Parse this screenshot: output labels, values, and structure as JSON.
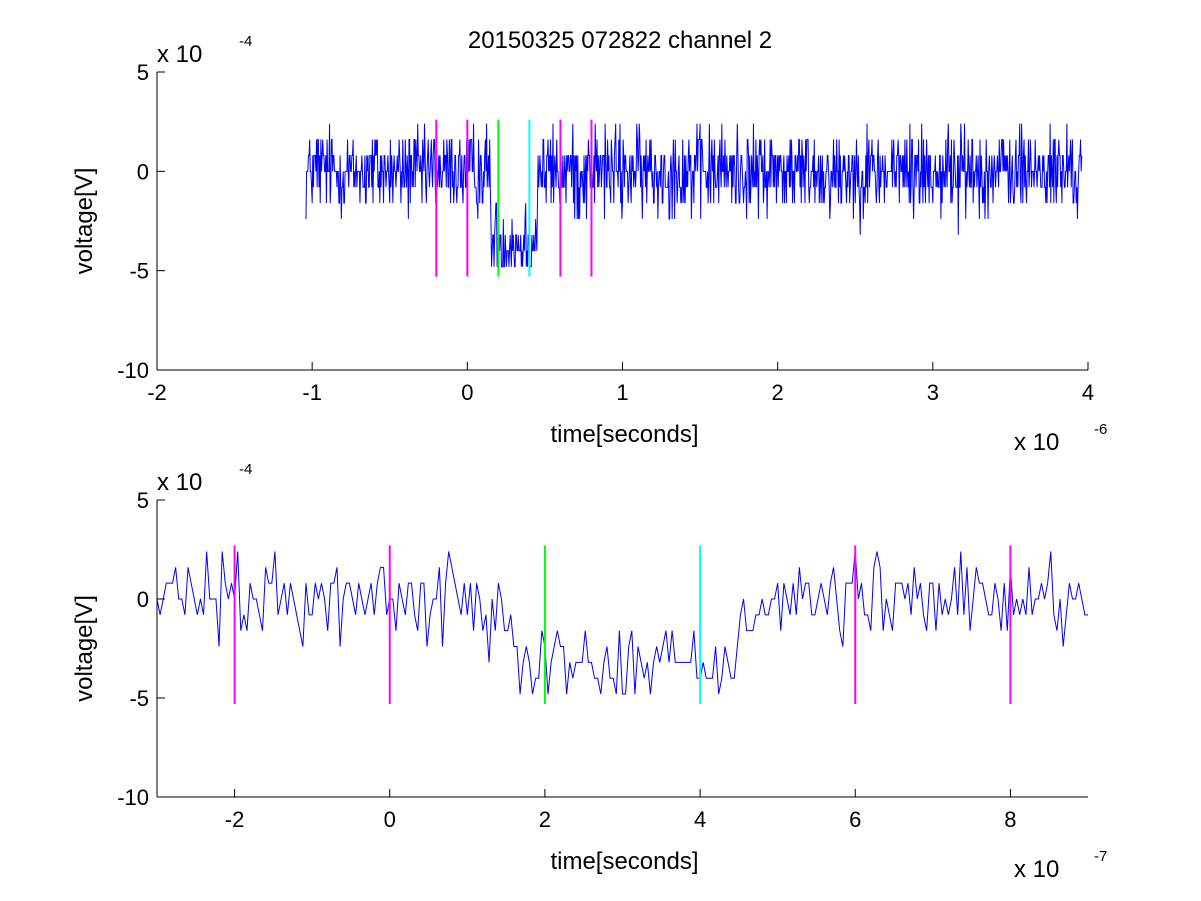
{
  "figure_title": "20150325 072822 channel 2",
  "chart_data": [
    {
      "type": "line",
      "title": "20150325 072822 channel 2",
      "xlabel": "time[seconds]",
      "ylabel": "voltage[V]",
      "x_exponent_label": "x 10",
      "x_exponent_power": "-6",
      "y_exponent_label": "x 10",
      "y_exponent_power": "-4",
      "xlim": [
        -2,
        4
      ],
      "ylim": [
        -10,
        5
      ],
      "xticks": [
        -2,
        -1,
        0,
        1,
        2,
        3,
        4
      ],
      "xtick_labels": [
        "-2",
        "-1",
        "0",
        "1",
        "2",
        "3",
        "4"
      ],
      "yticks": [
        -10,
        -5,
        0,
        5
      ],
      "ytick_labels": [
        "-10",
        "-5",
        "0",
        "5"
      ],
      "grid": false,
      "signal": {
        "color": "#0000ff",
        "x_start": -1.04,
        "x_end": 3.96,
        "baseline": 0,
        "noise_amplitude": 2.0,
        "dip_start": 0.15,
        "dip_end": 0.45,
        "dip_level": -3.5,
        "y_min_shown": -4.8,
        "y_max_shown": 2.4
      },
      "vlines": [
        {
          "x": -0.2,
          "y0": -5.3,
          "y1": 2.6,
          "color": "#ff00ff"
        },
        {
          "x": 0.0,
          "y0": -5.3,
          "y1": 2.6,
          "color": "#ff00ff"
        },
        {
          "x": 0.2,
          "y0": -5.3,
          "y1": 2.6,
          "color": "#00ff00"
        },
        {
          "x": 0.4,
          "y0": -5.3,
          "y1": 2.6,
          "color": "#00ffff"
        },
        {
          "x": 0.6,
          "y0": -5.3,
          "y1": 2.6,
          "color": "#ff00ff"
        },
        {
          "x": 0.8,
          "y0": -5.3,
          "y1": 2.6,
          "color": "#ff00ff"
        }
      ]
    },
    {
      "type": "line",
      "title": "",
      "xlabel": "time[seconds]",
      "ylabel": "voltage[V]",
      "x_exponent_label": "x 10",
      "x_exponent_power": "-7",
      "y_exponent_label": "x 10",
      "y_exponent_power": "-4",
      "xlim": [
        -3,
        9
      ],
      "ylim": [
        -10,
        5
      ],
      "xticks": [
        -2,
        0,
        2,
        4,
        6,
        8
      ],
      "xtick_labels": [
        "-2",
        "0",
        "2",
        "4",
        "6",
        "8"
      ],
      "yticks": [
        -10,
        -5,
        0,
        5
      ],
      "ytick_labels": [
        "-10",
        "-5",
        "0",
        "5"
      ],
      "grid": false,
      "signal": {
        "color": "#0000ff",
        "x_start": -3,
        "x_end": 9,
        "baseline": 0,
        "noise_amplitude": 2.0,
        "dip_start": 1.6,
        "dip_end": 4.5,
        "dip_level": -3.3,
        "y_min_shown": -4.8,
        "y_max_shown": 2.4
      },
      "vlines": [
        {
          "x": -2,
          "y0": -5.3,
          "y1": 2.7,
          "color": "#ff00ff"
        },
        {
          "x": 0,
          "y0": -5.3,
          "y1": 2.7,
          "color": "#ff00ff"
        },
        {
          "x": 2,
          "y0": -5.3,
          "y1": 2.7,
          "color": "#00ff00"
        },
        {
          "x": 4,
          "y0": -5.3,
          "y1": 2.7,
          "color": "#00ffff"
        },
        {
          "x": 6,
          "y0": -5.3,
          "y1": 2.7,
          "color": "#ff00ff"
        },
        {
          "x": 8,
          "y0": -5.3,
          "y1": 2.7,
          "color": "#ff00ff"
        }
      ]
    }
  ]
}
